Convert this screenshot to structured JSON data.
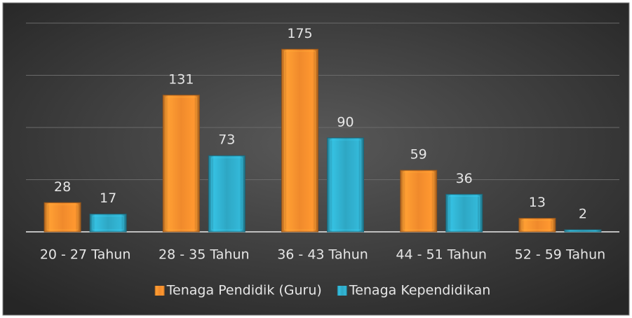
{
  "chart_data": {
    "type": "bar",
    "categories": [
      "20 - 27 Tahun",
      "28 - 35 Tahun",
      "36 - 43 Tahun",
      "44 - 51 Tahun",
      "52 - 59 Tahun"
    ],
    "series": [
      {
        "name": "Tenaga Pendidik (Guru)",
        "color": "#f08a2c",
        "values": [
          28,
          131,
          175,
          59,
          13
        ]
      },
      {
        "name": "Tenaga Kependidikan",
        "color": "#2ea7c4",
        "values": [
          17,
          73,
          90,
          36,
          2
        ]
      }
    ],
    "ylim": [
      0,
      200
    ],
    "yticks": [
      0,
      50,
      100,
      150,
      200
    ],
    "grid": true,
    "legend": "bottom"
  }
}
